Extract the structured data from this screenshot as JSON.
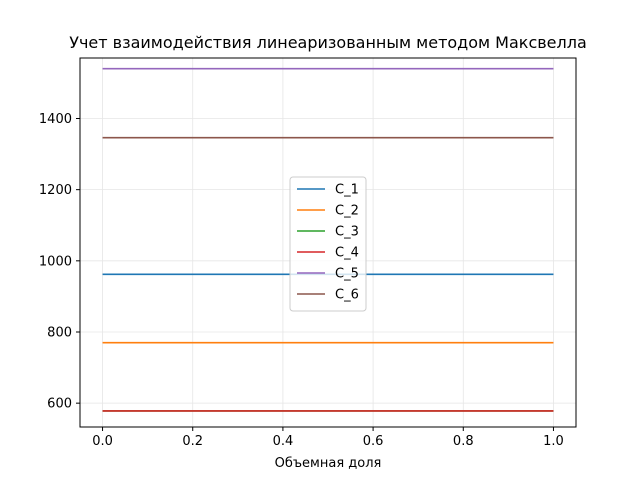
{
  "chart_data": {
    "type": "line",
    "title": "Учет взаимодействия линеаризованным методом Максвелла",
    "xlabel": "Объемная доля",
    "ylabel": "",
    "x": [
      0.0,
      1.0
    ],
    "xlim": [
      -0.05,
      1.05
    ],
    "ylim": [
      533,
      1570
    ],
    "xticks": [
      0.0,
      0.2,
      0.4,
      0.6,
      0.8,
      1.0
    ],
    "xtick_labels": [
      "0.0",
      "0.2",
      "0.4",
      "0.6",
      "0.8",
      "1.0"
    ],
    "yticks": [
      600,
      800,
      1000,
      1200,
      1400
    ],
    "ytick_labels": [
      "600",
      "800",
      "1000",
      "1200",
      "1400"
    ],
    "grid": true,
    "legend_position": "center",
    "series": [
      {
        "name": "C_1",
        "color": "#1f77b4",
        "values": [
          962,
          962
        ]
      },
      {
        "name": "C_2",
        "color": "#ff7f0e",
        "values": [
          770,
          770
        ]
      },
      {
        "name": "C_3",
        "color": "#2ca02c",
        "values": [
          578,
          578
        ]
      },
      {
        "name": "C_4",
        "color": "#d62728",
        "values": [
          578,
          578
        ]
      },
      {
        "name": "C_5",
        "color": "#9467bd",
        "values": [
          1540,
          1540
        ]
      },
      {
        "name": "C_6",
        "color": "#8c564b",
        "values": [
          1346,
          1346
        ]
      }
    ]
  }
}
